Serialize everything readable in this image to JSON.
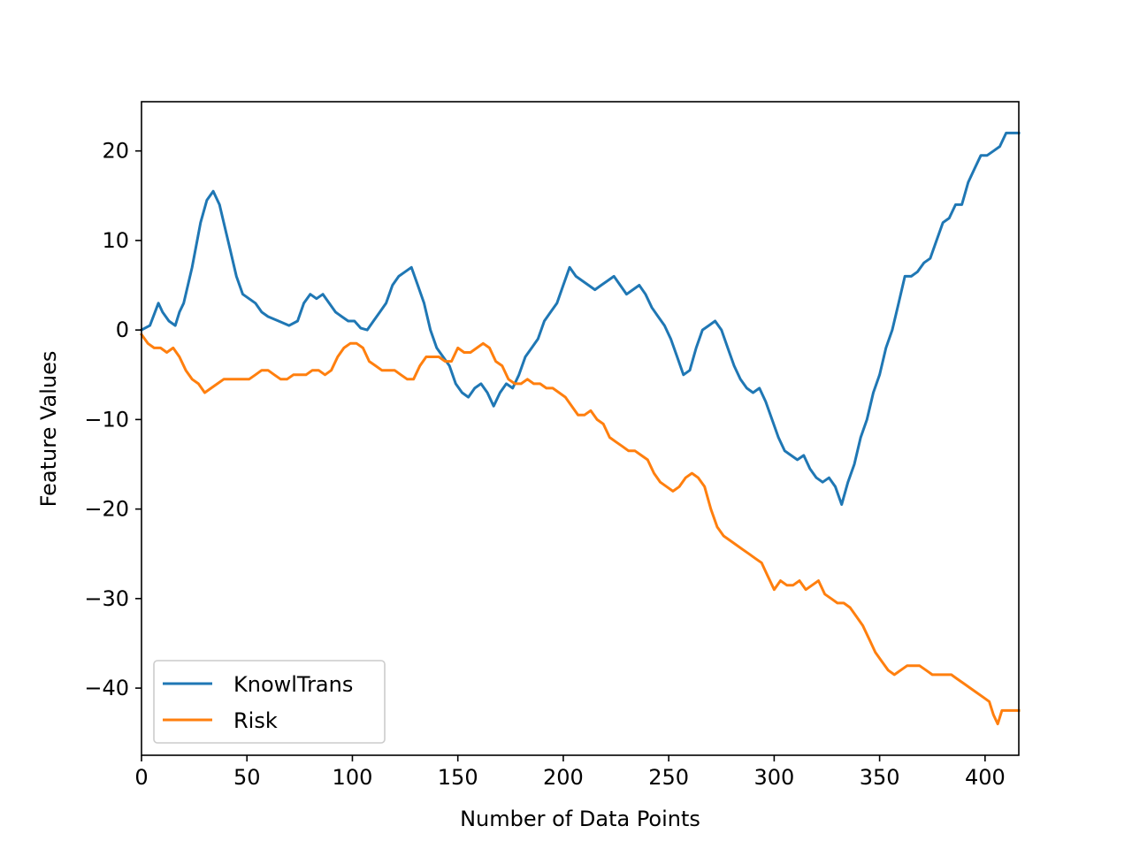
{
  "chart_data": {
    "type": "line",
    "title": "",
    "xlabel": "Number of Data Points",
    "ylabel": "Feature Values",
    "xlim": [
      0,
      416
    ],
    "ylim": [
      -47.5,
      25.5
    ],
    "xticks": [
      0,
      50,
      100,
      150,
      200,
      250,
      300,
      350,
      400
    ],
    "yticks": [
      20,
      10,
      0,
      -10,
      -20,
      -30,
      -40
    ],
    "ytick_labels": [
      "20",
      "10",
      "0",
      "−10",
      "−20",
      "−30",
      "−40"
    ],
    "grid": false,
    "legend_position": "lower-left",
    "series": [
      {
        "name": "KnowlTrans",
        "color": "#1f77b4",
        "points": [
          [
            0,
            0
          ],
          [
            4,
            0.5
          ],
          [
            8,
            3
          ],
          [
            10,
            2
          ],
          [
            13,
            1
          ],
          [
            16,
            0.5
          ],
          [
            18,
            2
          ],
          [
            20,
            3
          ],
          [
            24,
            7
          ],
          [
            28,
            12
          ],
          [
            31,
            14.5
          ],
          [
            34,
            15.5
          ],
          [
            37,
            14
          ],
          [
            40,
            11
          ],
          [
            42,
            9
          ],
          [
            45,
            6
          ],
          [
            48,
            4
          ],
          [
            51,
            3.5
          ],
          [
            54,
            3
          ],
          [
            57,
            2
          ],
          [
            60,
            1.5
          ],
          [
            65,
            1
          ],
          [
            70,
            0.5
          ],
          [
            74,
            1
          ],
          [
            77,
            3
          ],
          [
            80,
            4
          ],
          [
            83,
            3.5
          ],
          [
            86,
            4
          ],
          [
            89,
            3
          ],
          [
            92,
            2
          ],
          [
            95,
            1.5
          ],
          [
            98,
            1
          ],
          [
            101,
            1
          ],
          [
            104,
            0.2
          ],
          [
            107,
            0
          ],
          [
            110,
            1
          ],
          [
            113,
            2
          ],
          [
            116,
            3
          ],
          [
            119,
            5
          ],
          [
            122,
            6
          ],
          [
            125,
            6.5
          ],
          [
            128,
            7
          ],
          [
            131,
            5
          ],
          [
            134,
            3
          ],
          [
            137,
            0
          ],
          [
            140,
            -2
          ],
          [
            143,
            -3
          ],
          [
            146,
            -4
          ],
          [
            149,
            -6
          ],
          [
            152,
            -7
          ],
          [
            155,
            -7.5
          ],
          [
            158,
            -6.5
          ],
          [
            161,
            -6
          ],
          [
            164,
            -7
          ],
          [
            167,
            -8.5
          ],
          [
            170,
            -7
          ],
          [
            173,
            -6
          ],
          [
            176,
            -6.5
          ],
          [
            179,
            -5
          ],
          [
            182,
            -3
          ],
          [
            185,
            -2
          ],
          [
            188,
            -1
          ],
          [
            191,
            1
          ],
          [
            194,
            2
          ],
          [
            197,
            3
          ],
          [
            200,
            5
          ],
          [
            203,
            7
          ],
          [
            206,
            6
          ],
          [
            209,
            5.5
          ],
          [
            212,
            5
          ],
          [
            215,
            4.5
          ],
          [
            218,
            5
          ],
          [
            221,
            5.5
          ],
          [
            224,
            6
          ],
          [
            227,
            5
          ],
          [
            230,
            4
          ],
          [
            233,
            4.5
          ],
          [
            236,
            5
          ],
          [
            239,
            4
          ],
          [
            242,
            2.5
          ],
          [
            245,
            1.5
          ],
          [
            248,
            0.5
          ],
          [
            251,
            -1
          ],
          [
            254,
            -3
          ],
          [
            257,
            -5
          ],
          [
            260,
            -4.5
          ],
          [
            263,
            -2
          ],
          [
            266,
            0
          ],
          [
            269,
            0.5
          ],
          [
            272,
            1
          ],
          [
            275,
            0
          ],
          [
            278,
            -2
          ],
          [
            281,
            -4
          ],
          [
            284,
            -5.5
          ],
          [
            287,
            -6.5
          ],
          [
            290,
            -7
          ],
          [
            293,
            -6.5
          ],
          [
            296,
            -8
          ],
          [
            299,
            -10
          ],
          [
            302,
            -12
          ],
          [
            305,
            -13.5
          ],
          [
            308,
            -14
          ],
          [
            311,
            -14.5
          ],
          [
            314,
            -14
          ],
          [
            317,
            -15.5
          ],
          [
            320,
            -16.5
          ],
          [
            323,
            -17
          ],
          [
            326,
            -16.5
          ],
          [
            329,
            -17.5
          ],
          [
            332,
            -19.5
          ],
          [
            335,
            -17
          ],
          [
            338,
            -15
          ],
          [
            341,
            -12
          ],
          [
            344,
            -10
          ],
          [
            347,
            -7
          ],
          [
            350,
            -5
          ],
          [
            353,
            -2
          ],
          [
            356,
            0
          ],
          [
            359,
            3
          ],
          [
            362,
            6
          ],
          [
            365,
            6
          ],
          [
            368,
            6.5
          ],
          [
            371,
            7.5
          ],
          [
            374,
            8
          ],
          [
            377,
            10
          ],
          [
            380,
            12
          ],
          [
            383,
            12.5
          ],
          [
            386,
            14
          ],
          [
            389,
            14
          ],
          [
            392,
            16.5
          ],
          [
            395,
            18
          ],
          [
            398,
            19.5
          ],
          [
            401,
            19.5
          ],
          [
            404,
            20
          ],
          [
            407,
            20.5
          ],
          [
            410,
            22
          ],
          [
            413,
            22
          ],
          [
            416,
            22
          ]
        ]
      },
      {
        "name": "Risk",
        "color": "#ff7f0e",
        "points": [
          [
            0,
            -0.5
          ],
          [
            3,
            -1.5
          ],
          [
            6,
            -2
          ],
          [
            9,
            -2
          ],
          [
            12,
            -2.5
          ],
          [
            15,
            -2
          ],
          [
            18,
            -3
          ],
          [
            21,
            -4.5
          ],
          [
            24,
            -5.5
          ],
          [
            27,
            -6
          ],
          [
            30,
            -7
          ],
          [
            33,
            -6.5
          ],
          [
            36,
            -6
          ],
          [
            39,
            -5.5
          ],
          [
            42,
            -5.5
          ],
          [
            45,
            -5.5
          ],
          [
            48,
            -5.5
          ],
          [
            51,
            -5.5
          ],
          [
            54,
            -5
          ],
          [
            57,
            -4.5
          ],
          [
            60,
            -4.5
          ],
          [
            63,
            -5
          ],
          [
            66,
            -5.5
          ],
          [
            69,
            -5.5
          ],
          [
            72,
            -5
          ],
          [
            75,
            -5
          ],
          [
            78,
            -5
          ],
          [
            81,
            -4.5
          ],
          [
            84,
            -4.5
          ],
          [
            87,
            -5
          ],
          [
            90,
            -4.5
          ],
          [
            93,
            -3
          ],
          [
            96,
            -2
          ],
          [
            99,
            -1.5
          ],
          [
            102,
            -1.5
          ],
          [
            105,
            -2
          ],
          [
            108,
            -3.5
          ],
          [
            111,
            -4
          ],
          [
            114,
            -4.5
          ],
          [
            117,
            -4.5
          ],
          [
            120,
            -4.5
          ],
          [
            123,
            -5
          ],
          [
            126,
            -5.5
          ],
          [
            129,
            -5.5
          ],
          [
            132,
            -4
          ],
          [
            135,
            -3
          ],
          [
            138,
            -3
          ],
          [
            141,
            -3
          ],
          [
            144,
            -3.5
          ],
          [
            147,
            -3.5
          ],
          [
            150,
            -2
          ],
          [
            153,
            -2.5
          ],
          [
            156,
            -2.5
          ],
          [
            159,
            -2
          ],
          [
            162,
            -1.5
          ],
          [
            165,
            -2
          ],
          [
            168,
            -3.5
          ],
          [
            171,
            -4
          ],
          [
            174,
            -5.5
          ],
          [
            177,
            -6
          ],
          [
            180,
            -6
          ],
          [
            183,
            -5.5
          ],
          [
            186,
            -6
          ],
          [
            189,
            -6
          ],
          [
            192,
            -6.5
          ],
          [
            195,
            -6.5
          ],
          [
            198,
            -7
          ],
          [
            201,
            -7.5
          ],
          [
            204,
            -8.5
          ],
          [
            207,
            -9.5
          ],
          [
            210,
            -9.5
          ],
          [
            213,
            -9
          ],
          [
            216,
            -10
          ],
          [
            219,
            -10.5
          ],
          [
            222,
            -12
          ],
          [
            225,
            -12.5
          ],
          [
            228,
            -13
          ],
          [
            231,
            -13.5
          ],
          [
            234,
            -13.5
          ],
          [
            237,
            -14
          ],
          [
            240,
            -14.5
          ],
          [
            243,
            -16
          ],
          [
            246,
            -17
          ],
          [
            249,
            -17.5
          ],
          [
            252,
            -18
          ],
          [
            255,
            -17.5
          ],
          [
            258,
            -16.5
          ],
          [
            261,
            -16
          ],
          [
            264,
            -16.5
          ],
          [
            267,
            -17.5
          ],
          [
            270,
            -20
          ],
          [
            273,
            -22
          ],
          [
            276,
            -23
          ],
          [
            279,
            -23.5
          ],
          [
            282,
            -24
          ],
          [
            285,
            -24.5
          ],
          [
            288,
            -25
          ],
          [
            291,
            -25.5
          ],
          [
            294,
            -26
          ],
          [
            297,
            -27.5
          ],
          [
            300,
            -29
          ],
          [
            303,
            -28
          ],
          [
            306,
            -28.5
          ],
          [
            309,
            -28.5
          ],
          [
            312,
            -28
          ],
          [
            315,
            -29
          ],
          [
            318,
            -28.5
          ],
          [
            321,
            -28
          ],
          [
            324,
            -29.5
          ],
          [
            327,
            -30
          ],
          [
            330,
            -30.5
          ],
          [
            333,
            -30.5
          ],
          [
            336,
            -31
          ],
          [
            339,
            -32
          ],
          [
            342,
            -33
          ],
          [
            345,
            -34.5
          ],
          [
            348,
            -36
          ],
          [
            351,
            -37
          ],
          [
            354,
            -38
          ],
          [
            357,
            -38.5
          ],
          [
            360,
            -38
          ],
          [
            363,
            -37.5
          ],
          [
            366,
            -37.5
          ],
          [
            369,
            -37.5
          ],
          [
            372,
            -38
          ],
          [
            375,
            -38.5
          ],
          [
            378,
            -38.5
          ],
          [
            381,
            -38.5
          ],
          [
            384,
            -38.5
          ],
          [
            387,
            -39
          ],
          [
            390,
            -39.5
          ],
          [
            393,
            -40
          ],
          [
            396,
            -40.5
          ],
          [
            399,
            -41
          ],
          [
            402,
            -41.5
          ],
          [
            404,
            -43
          ],
          [
            406,
            -44
          ],
          [
            408,
            -42.5
          ],
          [
            411,
            -42.5
          ],
          [
            416,
            -42.5
          ]
        ]
      }
    ]
  }
}
